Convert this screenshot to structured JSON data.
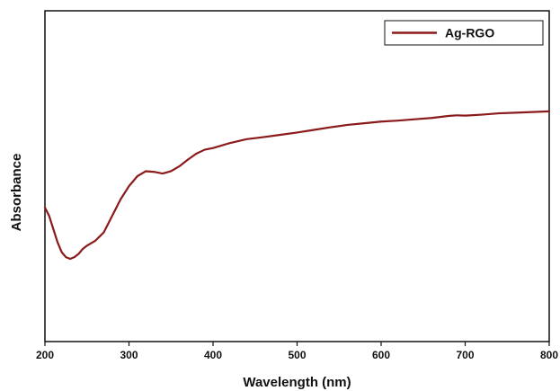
{
  "chart_data": {
    "type": "line",
    "xlabel": "Wavelength (nm)",
    "ylabel": "Absorbance",
    "xlim": [
      200,
      800
    ],
    "ylim": [
      0,
      1
    ],
    "xticks": [
      200,
      300,
      400,
      500,
      600,
      700,
      800
    ],
    "yticks_shown": false,
    "grid": false,
    "legend_position": "top-right",
    "series": [
      {
        "name": "Ag-RGO",
        "color": "#8b1a1a",
        "x": [
          200,
          205,
          210,
          215,
          220,
          225,
          230,
          235,
          240,
          245,
          250,
          260,
          270,
          280,
          290,
          300,
          310,
          320,
          330,
          340,
          350,
          360,
          370,
          380,
          390,
          400,
          420,
          440,
          460,
          480,
          500,
          520,
          540,
          560,
          580,
          600,
          620,
          640,
          660,
          680,
          690,
          700,
          720,
          740,
          760,
          780,
          800
        ],
        "y": [
          0.405,
          0.38,
          0.34,
          0.3,
          0.27,
          0.255,
          0.25,
          0.255,
          0.265,
          0.28,
          0.29,
          0.305,
          0.33,
          0.38,
          0.43,
          0.47,
          0.5,
          0.515,
          0.513,
          0.508,
          0.515,
          0.53,
          0.55,
          0.568,
          0.58,
          0.585,
          0.6,
          0.612,
          0.618,
          0.625,
          0.632,
          0.64,
          0.648,
          0.655,
          0.66,
          0.665,
          0.668,
          0.672,
          0.676,
          0.682,
          0.684,
          0.683,
          0.686,
          0.69,
          0.692,
          0.694,
          0.696
        ]
      }
    ]
  }
}
